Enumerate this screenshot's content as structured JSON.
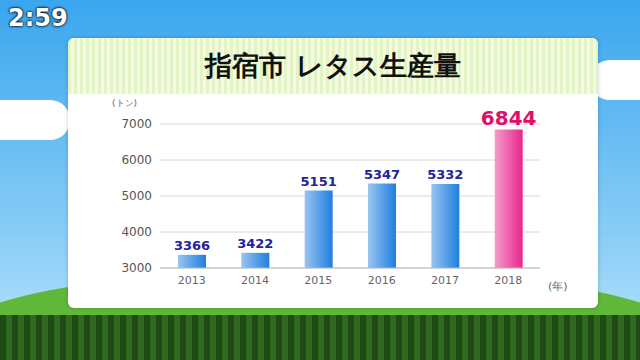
{
  "chart_data": {
    "type": "bar",
    "title": "指宿市 レタス生産量",
    "annotations": [
      "2:59"
    ],
    "x_label": "(年)",
    "y_label": "(トン)",
    "categories": [
      "2013",
      "2014",
      "2015",
      "2016",
      "2017",
      "2018"
    ],
    "values": [
      3366,
      3422,
      5151,
      5347,
      5332,
      6844
    ],
    "colors": [
      "#1e7fe0",
      "#1e7fe0",
      "#1e7fe0",
      "#1e7fe0",
      "#1e7fe0",
      "#e8268c"
    ],
    "ylim": [
      3000,
      7000
    ],
    "yticks": [
      3000,
      4000,
      5000,
      6000,
      7000
    ],
    "grid": true,
    "data_labels": true
  }
}
